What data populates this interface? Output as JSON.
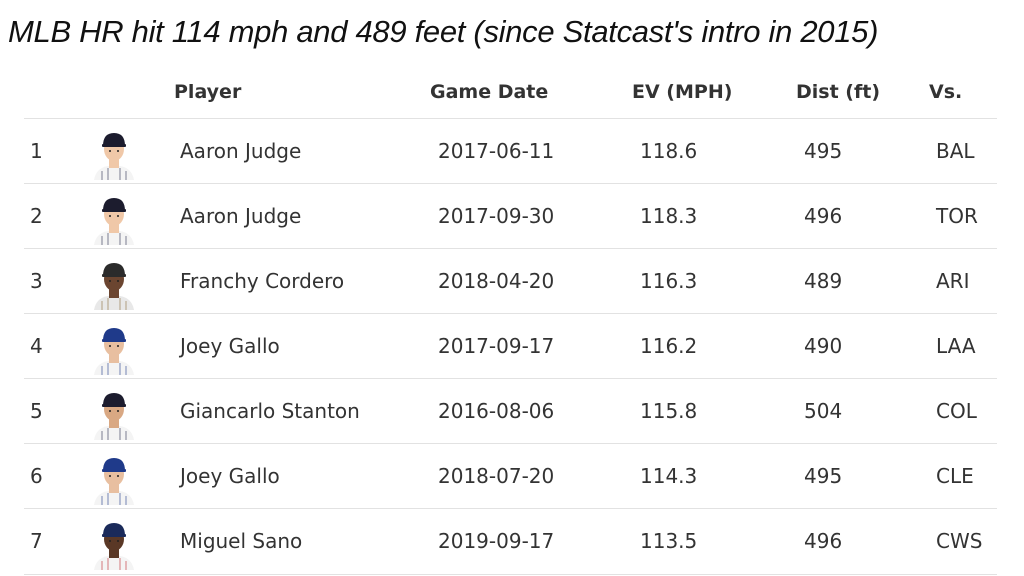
{
  "title": "MLB HR hit 114 mph and 489 feet (since Statcast's intro in 2015)",
  "columns": {
    "player": "Player",
    "game_date": "Game Date",
    "ev": "EV (MPH)",
    "dist": "Dist (ft)",
    "vs": "Vs."
  },
  "chart_data": {
    "type": "table",
    "title": "MLB HR hit 114 mph and 489 feet (since Statcast's intro in 2015)",
    "columns": [
      "",
      "Player",
      "Game Date",
      "EV (MPH)",
      "Dist (ft)",
      "Vs."
    ],
    "rows": [
      {
        "rank": "1",
        "player": "Aaron Judge",
        "date": "2017-06-11",
        "ev": "118.6",
        "dist": "495",
        "vs": "BAL",
        "cap_color": "#1c1c2e",
        "skin": "#f0c8a8",
        "jersey": "#f4f4f4",
        "stripe": "#2a2f4f"
      },
      {
        "rank": "2",
        "player": "Aaron Judge",
        "date": "2017-09-30",
        "ev": "118.3",
        "dist": "496",
        "vs": "TOR",
        "cap_color": "#1c1c2e",
        "skin": "#f0c8a8",
        "jersey": "#f4f4f4",
        "stripe": "#2a2f4f"
      },
      {
        "rank": "3",
        "player": "Franchy Cordero",
        "date": "2018-04-20",
        "ev": "116.3",
        "dist": "489",
        "vs": "ARI",
        "cap_color": "#2b2b2b",
        "skin": "#6b4530",
        "jersey": "#e8e8e8",
        "stripe": "#8a6d3b"
      },
      {
        "rank": "4",
        "player": "Joey Gallo",
        "date": "2017-09-17",
        "ev": "116.2",
        "dist": "490",
        "vs": "LAA",
        "cap_color": "#1f3a8a",
        "skin": "#e8bfa0",
        "jersey": "#f4f4f4",
        "stripe": "#1f3a8a"
      },
      {
        "rank": "5",
        "player": "Giancarlo Stanton",
        "date": "2016-08-06",
        "ev": "115.8",
        "dist": "504",
        "vs": "COL",
        "cap_color": "#1c1c2e",
        "skin": "#d9a883",
        "jersey": "#f4f4f4",
        "stripe": "#2a2f4f"
      },
      {
        "rank": "6",
        "player": "Joey Gallo",
        "date": "2018-07-20",
        "ev": "114.3",
        "dist": "495",
        "vs": "CLE",
        "cap_color": "#1f3a8a",
        "skin": "#e8bfa0",
        "jersey": "#f4f4f4",
        "stripe": "#1f3a8a"
      },
      {
        "rank": "7",
        "player": "Miguel Sano",
        "date": "2019-09-17",
        "ev": "113.5",
        "dist": "496",
        "vs": "CWS",
        "cap_color": "#1a2a5a",
        "skin": "#5a3826",
        "jersey": "#f4f4f4",
        "stripe": "#c0282e"
      }
    ]
  }
}
